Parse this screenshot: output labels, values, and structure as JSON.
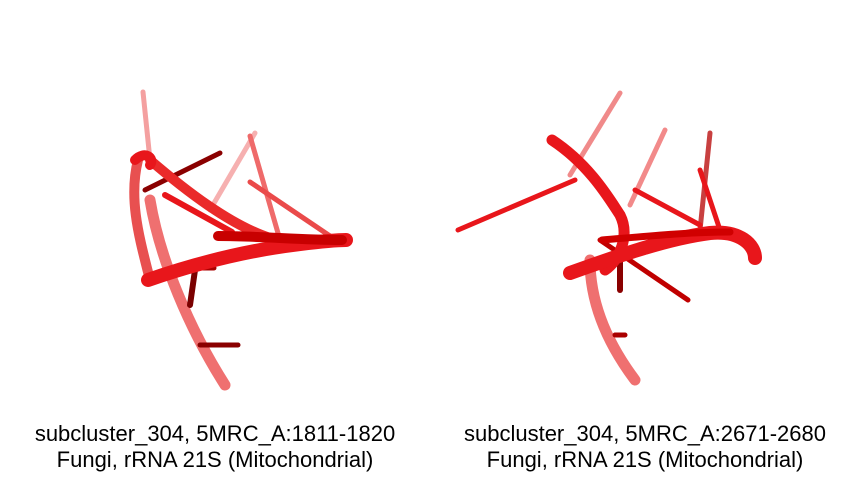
{
  "panels": [
    {
      "line1": "subcluster_304, 5MRC_A:1811-1820",
      "line2": "Fungi, rRNA 21S (Mitochondrial)"
    },
    {
      "line1": "subcluster_304, 5MRC_A:2671-2680",
      "line2": "Fungi, rRNA 21S (Mitochondrial)"
    }
  ],
  "colors": {
    "backbone": "#e8161b",
    "dark": "#8a0000",
    "light": "#f08080"
  }
}
